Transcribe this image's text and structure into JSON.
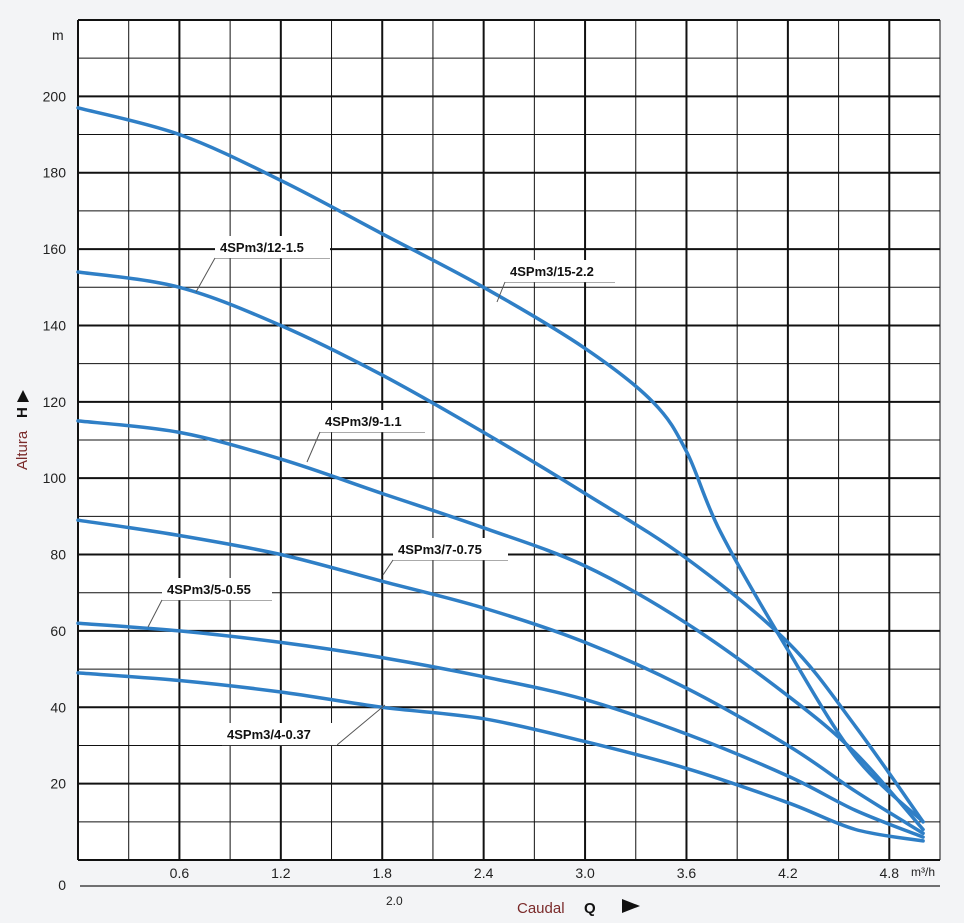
{
  "chart_data": {
    "type": "line",
    "xlabel": "Caudal",
    "xlabel_symbol": "Q",
    "ylabel": "Altura",
    "ylabel_symbol": "H",
    "x_unit": "m³/h",
    "y_unit": "m",
    "extra_x_label": "2.0",
    "xlim": [
      0,
      5.1
    ],
    "ylim": [
      0,
      220
    ],
    "x_ticks": [
      0.6,
      1.2,
      1.8,
      2.4,
      3.0,
      3.6,
      4.2,
      4.8
    ],
    "x_tick_labels": [
      "0.6",
      "1.2",
      "1.8",
      "2.4",
      "3.0",
      "3.6",
      "4.2",
      "4.8"
    ],
    "y_ticks": [
      0,
      20,
      40,
      60,
      80,
      100,
      120,
      140,
      160,
      180,
      200
    ],
    "y_tick_labels": [
      "0",
      "20",
      "40",
      "60",
      "80",
      "100",
      "120",
      "140",
      "160",
      "180",
      "200"
    ],
    "grid": true,
    "colors": {
      "curve": "#2f7fc6",
      "grid": "#111111",
      "leader": "#555555"
    },
    "series": [
      {
        "name": "4SPm3/15-2.2",
        "x": [
          0,
          0.6,
          1.2,
          1.8,
          2.4,
          3.0,
          3.4,
          3.6,
          3.8,
          4.2,
          4.6,
          5.0
        ],
        "y": [
          197,
          190,
          178,
          164,
          150,
          134,
          120,
          107,
          86,
          55,
          27,
          10
        ]
      },
      {
        "name": "4SPm3/12-1.5",
        "x": [
          0,
          0.6,
          1.2,
          1.8,
          2.4,
          3.0,
          3.6,
          4.2,
          4.6,
          5.0
        ],
        "y": [
          154,
          150,
          140,
          127,
          112,
          96,
          79,
          57,
          35,
          10
        ]
      },
      {
        "name": "4SPm3/9-1.1",
        "x": [
          0,
          0.6,
          1.2,
          1.8,
          2.4,
          3.0,
          3.6,
          4.2,
          4.6,
          5.0
        ],
        "y": [
          115,
          112,
          105,
          96,
          87,
          77,
          62,
          43,
          28,
          8
        ]
      },
      {
        "name": "4SPm3/7-0.75",
        "x": [
          0,
          0.6,
          1.2,
          1.8,
          2.4,
          3.0,
          3.6,
          4.2,
          4.6,
          5.0
        ],
        "y": [
          89,
          85,
          80,
          73,
          66,
          57,
          45,
          30,
          18,
          7
        ]
      },
      {
        "name": "4SPm3/5-0.55",
        "x": [
          0,
          0.6,
          1.2,
          1.8,
          2.4,
          3.0,
          3.6,
          4.2,
          4.6,
          5.0
        ],
        "y": [
          62,
          60,
          57,
          53,
          48,
          42,
          33,
          22,
          13,
          6
        ]
      },
      {
        "name": "4SPm3/4-0.37",
        "x": [
          0,
          0.6,
          1.2,
          1.8,
          2.4,
          3.0,
          3.6,
          4.2,
          4.6,
          5.0
        ],
        "y": [
          49,
          47,
          44,
          40,
          37,
          31,
          24,
          15,
          8,
          5
        ]
      }
    ]
  }
}
